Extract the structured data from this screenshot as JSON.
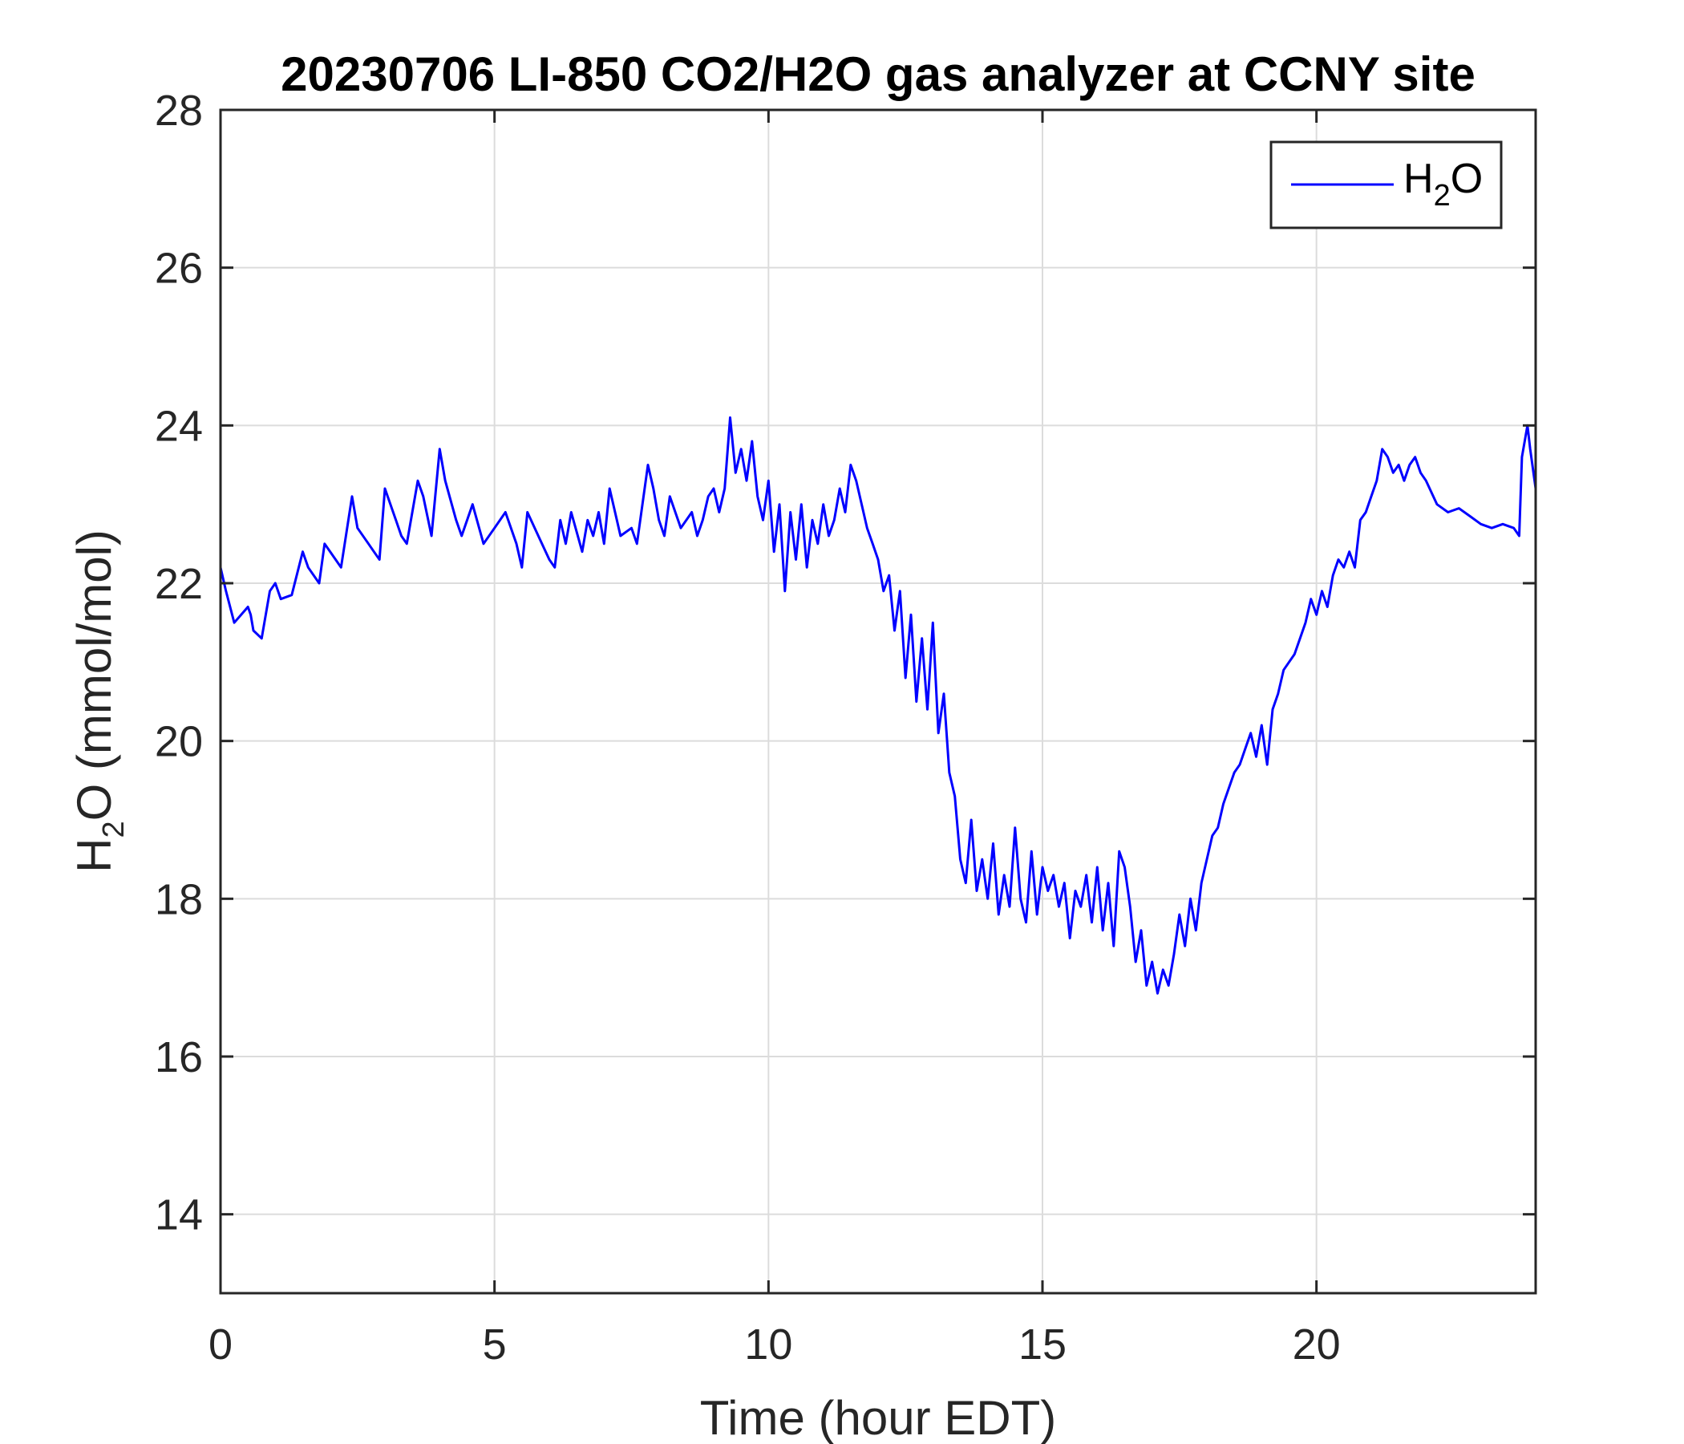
{
  "chart_data": {
    "type": "line",
    "title": "20230706 LI-850 CO2/H2O gas analyzer at CCNY site",
    "xlabel": "Time (hour EDT)",
    "ylabel": {
      "prefix": "H",
      "sub": "2",
      "suffix": "O (mmol/mol)"
    },
    "xlim": [
      0,
      24
    ],
    "ylim": [
      13,
      28
    ],
    "xticks": [
      0,
      5,
      10,
      15,
      20
    ],
    "yticks": [
      14,
      16,
      18,
      20,
      22,
      24,
      26,
      28
    ],
    "grid": true,
    "legend_position": "top-right",
    "series": [
      {
        "name": {
          "prefix": "H",
          "sub": "2",
          "suffix": "O"
        },
        "color": "#0000ff",
        "x": [
          0,
          0.1,
          0.25,
          0.5,
          0.55,
          0.6,
          0.75,
          0.9,
          1.0,
          1.1,
          1.3,
          1.5,
          1.6,
          1.8,
          1.9,
          2.1,
          2.2,
          2.4,
          2.5,
          2.7,
          2.8,
          2.9,
          3.0,
          3.2,
          3.3,
          3.4,
          3.6,
          3.7,
          3.85,
          4.0,
          4.1,
          4.3,
          4.4,
          4.6,
          4.8,
          5.0,
          5.2,
          5.4,
          5.5,
          5.6,
          5.8,
          6.0,
          6.1,
          6.2,
          6.3,
          6.4,
          6.6,
          6.7,
          6.8,
          6.9,
          7.0,
          7.1,
          7.2,
          7.3,
          7.5,
          7.6,
          7.8,
          7.9,
          8.0,
          8.1,
          8.2,
          8.4,
          8.6,
          8.7,
          8.8,
          8.9,
          9.0,
          9.1,
          9.2,
          9.3,
          9.4,
          9.5,
          9.6,
          9.7,
          9.8,
          9.9,
          10.0,
          10.1,
          10.2,
          10.3,
          10.4,
          10.5,
          10.6,
          10.7,
          10.8,
          10.9,
          11.0,
          11.1,
          11.2,
          11.3,
          11.4,
          11.5,
          11.6,
          11.7,
          11.8,
          11.9,
          12.0,
          12.1,
          12.2,
          12.3,
          12.4,
          12.5,
          12.6,
          12.7,
          12.8,
          12.9,
          13.0,
          13.1,
          13.2,
          13.3,
          13.4,
          13.5,
          13.6,
          13.7,
          13.8,
          13.9,
          14.0,
          14.1,
          14.2,
          14.3,
          14.4,
          14.5,
          14.6,
          14.7,
          14.8,
          14.9,
          15.0,
          15.1,
          15.2,
          15.3,
          15.4,
          15.5,
          15.6,
          15.7,
          15.8,
          15.9,
          16.0,
          16.1,
          16.2,
          16.3,
          16.4,
          16.5,
          16.6,
          16.7,
          16.8,
          16.9,
          17.0,
          17.1,
          17.2,
          17.3,
          17.4,
          17.5,
          17.6,
          17.7,
          17.8,
          17.9,
          18.0,
          18.1,
          18.2,
          18.3,
          18.4,
          18.5,
          18.6,
          18.7,
          18.8,
          18.9,
          19.0,
          19.1,
          19.2,
          19.3,
          19.4,
          19.5,
          19.6,
          19.7,
          19.8,
          19.9,
          20.0,
          20.1,
          20.2,
          20.3,
          20.4,
          20.5,
          20.6,
          20.7,
          20.8,
          20.9,
          21.0,
          21.1,
          21.2,
          21.3,
          21.4,
          21.5,
          21.6,
          21.7,
          21.8,
          21.9,
          22.0,
          22.2,
          22.4,
          22.6,
          22.8,
          23.0,
          23.2,
          23.4,
          23.6,
          23.7,
          23.75,
          23.85,
          23.9,
          24.0
        ],
        "y": [
          22.2,
          21.9,
          21.5,
          21.7,
          21.6,
          21.4,
          21.3,
          21.9,
          22.0,
          21.8,
          21.85,
          22.4,
          22.2,
          22.0,
          22.5,
          22.3,
          22.2,
          23.1,
          22.7,
          22.5,
          22.4,
          22.3,
          23.2,
          22.8,
          22.6,
          22.5,
          23.3,
          23.1,
          22.6,
          23.7,
          23.3,
          22.8,
          22.6,
          23.0,
          22.5,
          22.7,
          22.9,
          22.5,
          22.2,
          22.9,
          22.6,
          22.3,
          22.2,
          22.8,
          22.5,
          22.9,
          22.4,
          22.8,
          22.6,
          22.9,
          22.5,
          23.2,
          22.9,
          22.6,
          22.7,
          22.5,
          23.5,
          23.2,
          22.8,
          22.6,
          23.1,
          22.7,
          22.9,
          22.6,
          22.8,
          23.1,
          23.2,
          22.9,
          23.2,
          24.1,
          23.4,
          23.7,
          23.3,
          23.8,
          23.1,
          22.8,
          23.3,
          22.4,
          23.0,
          21.9,
          22.9,
          22.3,
          23.0,
          22.2,
          22.8,
          22.5,
          23.0,
          22.6,
          22.8,
          23.2,
          22.9,
          23.5,
          23.3,
          23.0,
          22.7,
          22.5,
          22.3,
          21.9,
          22.1,
          21.4,
          21.9,
          20.8,
          21.6,
          20.5,
          21.3,
          20.4,
          21.5,
          20.1,
          20.6,
          19.6,
          19.3,
          18.5,
          18.2,
          19.0,
          18.1,
          18.5,
          18.0,
          18.7,
          17.8,
          18.3,
          17.9,
          18.9,
          18.0,
          17.7,
          18.6,
          17.8,
          18.4,
          18.1,
          18.3,
          17.9,
          18.2,
          17.5,
          18.1,
          17.9,
          18.3,
          17.7,
          18.4,
          17.6,
          18.2,
          17.4,
          18.6,
          18.4,
          17.9,
          17.2,
          17.6,
          16.9,
          17.2,
          16.8,
          17.1,
          16.9,
          17.3,
          17.8,
          17.4,
          18.0,
          17.6,
          18.2,
          18.5,
          18.8,
          18.9,
          19.2,
          19.4,
          19.6,
          19.7,
          19.9,
          20.1,
          19.8,
          20.2,
          19.7,
          20.4,
          20.6,
          20.9,
          21.0,
          21.1,
          21.3,
          21.5,
          21.8,
          21.6,
          21.9,
          21.7,
          22.1,
          22.3,
          22.2,
          22.4,
          22.2,
          22.8,
          22.9,
          23.1,
          23.3,
          23.7,
          23.6,
          23.4,
          23.5,
          23.3,
          23.5,
          23.6,
          23.4,
          23.3,
          23.0,
          22.9,
          22.95,
          22.85,
          22.75,
          22.7,
          22.75,
          22.7,
          22.6,
          23.6,
          24.0,
          23.7,
          23.2
        ]
      }
    ]
  }
}
